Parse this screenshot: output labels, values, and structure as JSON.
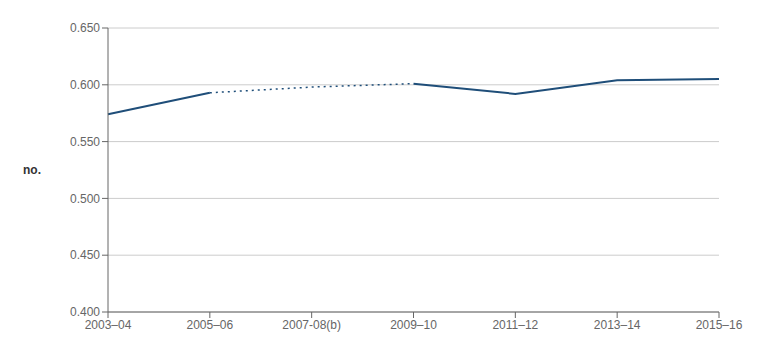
{
  "chart_data": {
    "type": "line",
    "ylabel": "no.",
    "categories": [
      "2003–04",
      "2005–06",
      "2007-08(b)",
      "2009–10",
      "2011–12",
      "2013–14",
      "2015–16"
    ],
    "series": [
      {
        "color": "#1F4E79",
        "line_style": "solid",
        "values": [
          0.574,
          0.593,
          null,
          null,
          null,
          null,
          null
        ]
      },
      {
        "color": "#1F4E79",
        "line_style": "dotted",
        "values": [
          null,
          0.593,
          0.598,
          0.601,
          null,
          null,
          null
        ]
      },
      {
        "color": "#1F4E79",
        "line_style": "solid",
        "values": [
          null,
          null,
          null,
          0.601,
          0.592,
          0.604,
          0.605
        ]
      }
    ],
    "ylim": [
      0.4,
      0.65
    ],
    "yticks": [
      {
        "value": 0.4,
        "label": "0.400"
      },
      {
        "value": 0.45,
        "label": "0.450"
      },
      {
        "value": 0.5,
        "label": "0.500"
      },
      {
        "value": 0.55,
        "label": "0.550"
      },
      {
        "value": 0.6,
        "label": "0.600"
      },
      {
        "value": 0.65,
        "label": "0.650"
      }
    ],
    "grid": true
  }
}
